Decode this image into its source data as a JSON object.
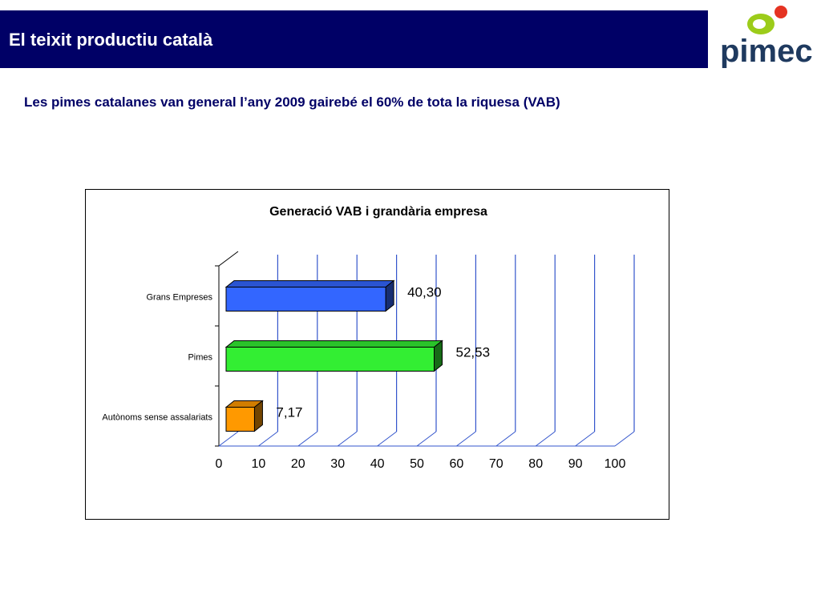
{
  "header": {
    "title": "El teixit productiu català",
    "brand_color": "#000066"
  },
  "logo": {
    "text": "pimec",
    "text_color": "#1f3a5f",
    "dot_colors": [
      "#9ccc1a",
      "#e53322"
    ]
  },
  "subtitle": "Les pimes catalanes van general l’any 2009 gairebé el 60% de tota la riquesa (VAB)",
  "chart_data": {
    "type": "bar",
    "orientation": "horizontal",
    "three_d": true,
    "title": "Generació VAB i grandària empresa",
    "xlabel": "",
    "ylabel": "",
    "xlim": [
      0,
      100
    ],
    "x_ticks": [
      "0",
      "10",
      "20",
      "30",
      "40",
      "50",
      "60",
      "70",
      "80",
      "90",
      "100"
    ],
    "grid": "vertical",
    "legend": "none",
    "categories": [
      "Grans Empreses",
      "Pimes",
      "Autònoms sense assalariats"
    ],
    "values": [
      40.3,
      52.53,
      7.17
    ],
    "value_labels": [
      "40,30",
      "52,53",
      "7,17"
    ],
    "colors": [
      "#3366ff",
      "#33ee33",
      "#ff9900"
    ],
    "grid_color": "#3355cc"
  }
}
